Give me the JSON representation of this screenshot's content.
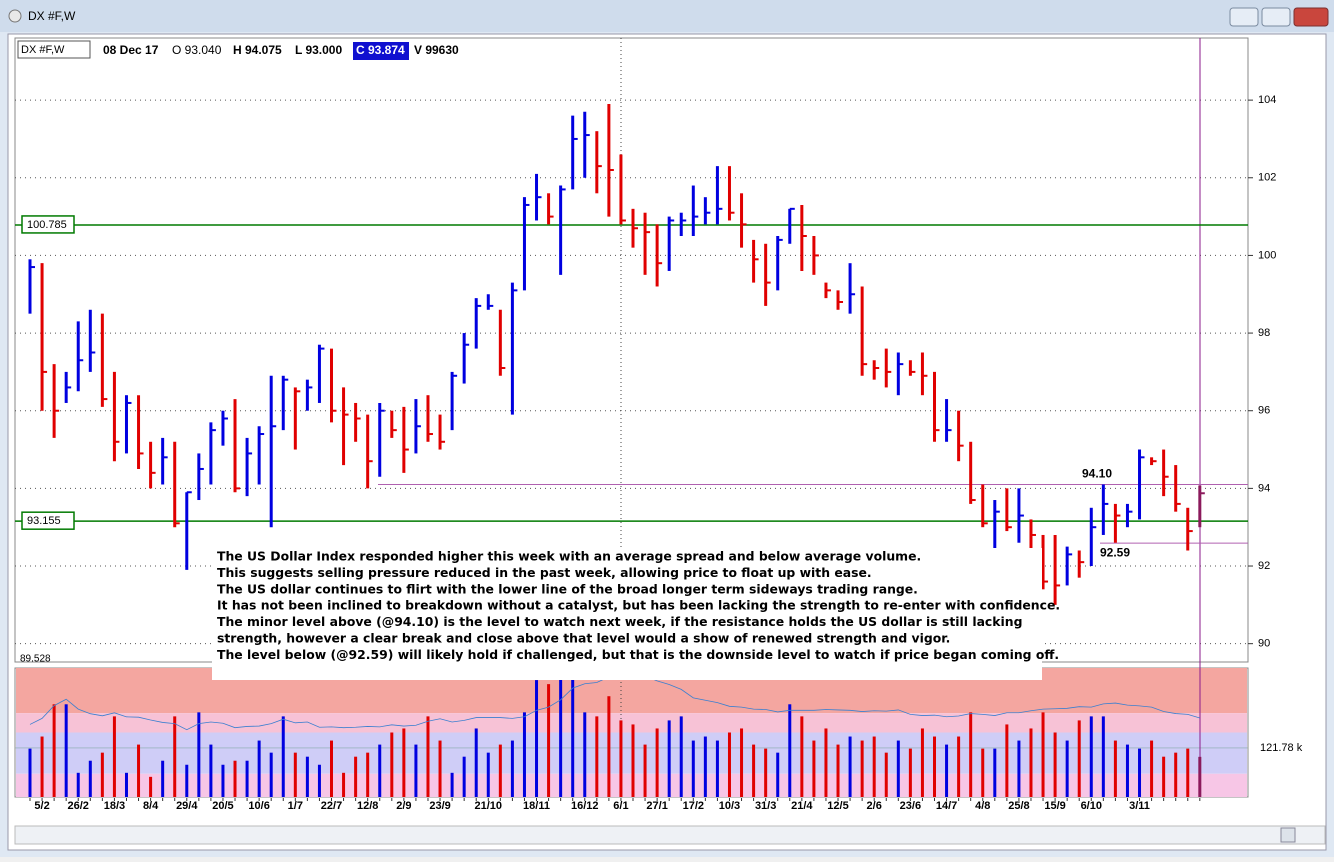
{
  "window_title": "DX #F,W",
  "header": {
    "symbol": "DX #F,W",
    "date": "08 Dec 17",
    "open": "O 93.040",
    "high": "H 94.075",
    "low": "L 93.000",
    "close": "C 93.874",
    "volume": "V 99630"
  },
  "chart_data": {
    "type": "ohlc",
    "categories": [
      null,
      "5/2",
      null,
      null,
      "26/2",
      null,
      null,
      "18/3",
      null,
      null,
      "8/4",
      null,
      null,
      "29/4",
      null,
      null,
      "20/5",
      null,
      null,
      "10/6",
      null,
      null,
      "1/7",
      null,
      null,
      "22/7",
      null,
      null,
      "12/8",
      null,
      null,
      "2/9",
      null,
      null,
      "23/9",
      null,
      null,
      null,
      "21/10",
      null,
      null,
      null,
      "18/11",
      null,
      null,
      null,
      "16/12",
      null,
      null,
      "6/1",
      null,
      null,
      "27/1",
      null,
      null,
      "17/2",
      null,
      null,
      "10/3",
      null,
      null,
      "31/3",
      null,
      null,
      "21/4",
      null,
      null,
      "12/5",
      null,
      null,
      "2/6",
      null,
      null,
      "23/6",
      null,
      null,
      "14/7",
      null,
      null,
      "4/8",
      null,
      null,
      "25/8",
      null,
      null,
      "15/9",
      null,
      null,
      "6/10",
      null,
      null,
      null,
      "3/11",
      null,
      null,
      null,
      null,
      null
    ],
    "high": [
      99.9,
      99.8,
      97.2,
      97.0,
      98.3,
      98.6,
      98.5,
      97.0,
      96.4,
      96.4,
      95.2,
      95.3,
      95.2,
      93.9,
      94.9,
      95.7,
      96.0,
      96.3,
      95.3,
      95.6,
      96.9,
      96.9,
      96.6,
      96.8,
      97.7,
      97.6,
      96.6,
      96.2,
      95.9,
      96.2,
      96.0,
      96.1,
      96.3,
      96.4,
      95.9,
      97.0,
      98.0,
      98.9,
      99.0,
      98.6,
      99.3,
      101.5,
      102.1,
      101.6,
      101.8,
      103.6,
      103.7,
      103.2,
      103.9,
      102.6,
      101.2,
      101.1,
      100.8,
      101.0,
      101.1,
      101.8,
      101.5,
      102.3,
      102.3,
      101.6,
      100.4,
      100.3,
      100.5,
      101.2,
      101.3,
      100.5,
      99.3,
      99.1,
      99.8,
      99.2,
      97.3,
      97.6,
      97.5,
      97.3,
      97.5,
      97.0,
      96.3,
      96.0,
      95.2,
      94.1,
      93.7,
      94.0,
      94.0,
      93.2,
      92.8,
      92.8,
      92.5,
      92.4,
      93.5,
      94.1,
      93.6,
      93.6,
      95.0,
      94.8,
      95.0,
      94.6,
      93.5,
      94.075
    ],
    "low": [
      98.5,
      96.0,
      95.3,
      96.2,
      96.5,
      97.0,
      96.1,
      94.7,
      94.9,
      94.5,
      94.0,
      94.1,
      93.0,
      91.9,
      93.7,
      94.1,
      95.1,
      93.9,
      93.8,
      94.1,
      93.0,
      95.5,
      95.0,
      96.0,
      96.2,
      95.7,
      94.6,
      95.2,
      94.0,
      94.3,
      95.3,
      94.4,
      94.9,
      95.2,
      95.0,
      95.5,
      96.7,
      97.6,
      98.6,
      96.9,
      95.9,
      99.1,
      100.9,
      100.8,
      99.5,
      101.7,
      102.0,
      101.6,
      101.0,
      100.8,
      100.2,
      99.5,
      99.2,
      99.6,
      100.5,
      100.5,
      100.8,
      100.8,
      100.9,
      100.2,
      99.3,
      98.7,
      99.1,
      100.3,
      99.6,
      99.5,
      98.9,
      98.6,
      98.5,
      96.9,
      96.8,
      96.6,
      96.4,
      96.9,
      96.4,
      95.2,
      95.2,
      94.7,
      93.6,
      93.0,
      92.4,
      92.9,
      92.6,
      92.4,
      91.4,
      91.0,
      91.5,
      91.7,
      92.0,
      92.8,
      92.6,
      93.0,
      93.2,
      94.6,
      93.8,
      93.4,
      92.4,
      93.0
    ],
    "close": [
      99.7,
      97.0,
      96.0,
      96.6,
      97.3,
      97.5,
      96.3,
      95.2,
      96.2,
      94.9,
      94.4,
      94.8,
      93.1,
      93.9,
      94.5,
      95.5,
      95.8,
      94.0,
      94.9,
      95.4,
      95.6,
      96.8,
      96.5,
      96.6,
      97.6,
      96.0,
      95.9,
      95.8,
      94.7,
      96.0,
      95.5,
      95.0,
      95.6,
      95.4,
      95.2,
      96.9,
      97.7,
      98.7,
      98.7,
      97.1,
      99.1,
      101.3,
      101.5,
      101.0,
      101.7,
      103.0,
      103.1,
      102.3,
      102.2,
      100.9,
      100.7,
      100.6,
      99.8,
      100.9,
      100.9,
      101.0,
      101.1,
      101.2,
      101.1,
      100.8,
      99.9,
      99.3,
      100.4,
      101.2,
      100.5,
      100.0,
      99.1,
      98.8,
      99.0,
      97.2,
      97.1,
      97.0,
      97.2,
      97.0,
      96.9,
      95.5,
      95.5,
      95.1,
      93.7,
      93.1,
      93.4,
      93.0,
      93.3,
      92.8,
      91.6,
      91.5,
      92.3,
      92.1,
      93.0,
      93.6,
      93.3,
      93.4,
      94.8,
      94.7,
      94.3,
      93.6,
      92.9,
      93.874
    ],
    "volume": [
      120,
      150,
      230,
      230,
      60,
      90,
      110,
      200,
      60,
      130,
      50,
      90,
      200,
      80,
      210,
      130,
      80,
      90,
      90,
      140,
      110,
      200,
      110,
      100,
      80,
      140,
      60,
      100,
      110,
      130,
      160,
      170,
      130,
      200,
      140,
      60,
      100,
      170,
      110,
      130,
      140,
      210,
      290,
      280,
      320,
      350,
      210,
      200,
      250,
      190,
      180,
      130,
      170,
      190,
      200,
      140,
      150,
      140,
      160,
      170,
      130,
      120,
      110,
      230,
      200,
      140,
      170,
      130,
      150,
      140,
      150,
      110,
      140,
      120,
      170,
      150,
      130,
      150,
      210,
      120,
      120,
      180,
      140,
      170,
      210,
      160,
      140,
      190,
      200,
      200,
      140,
      130,
      120,
      140,
      100,
      110,
      120,
      99.63
    ],
    "up_color": "#0000e0",
    "down_color": "#e00000",
    "current_color": "#8b1a5c",
    "ylim": [
      89.528,
      105.6
    ],
    "yticks": [
      90,
      92,
      94,
      96,
      98,
      100,
      102,
      104
    ],
    "grid": true,
    "vol_ylim": [
      0,
      320
    ],
    "vol_yticks": [
      {
        "value": 121.78,
        "label": "121.78 k"
      }
    ],
    "levels": [
      {
        "value": 100.785,
        "label": "100.785",
        "color": "#007a00"
      },
      {
        "value": 93.155,
        "label": "93.155",
        "color": "#007a00"
      }
    ],
    "annotations": [
      {
        "value": 94.1,
        "label": "94.10",
        "color": "#b060b0"
      },
      {
        "value": 92.59,
        "label": "92.59",
        "color": "#b060b0"
      }
    ],
    "commentary": [
      "The US Dollar Index responded higher this week with an average spread and below average volume.",
      "This suggests selling pressure reduced in the past week, allowing price to float up with ease.",
      "The US dollar continues to flirt with the lower line of the broad longer term sideways trading range.",
      "It has not been inclined to breakdown without a catalyst, but has been lacking the strength to re-enter with confidence.",
      "The minor level above (@94.10) is the level to watch next week, if the resistance holds the US dollar is still lacking",
      "strength, however a clear break and close above that level would a show of renewed strength and vigor.",
      "The level below (@92.59) will likely hold if challenged, but that is the downside level to watch if price began coming off."
    ]
  }
}
